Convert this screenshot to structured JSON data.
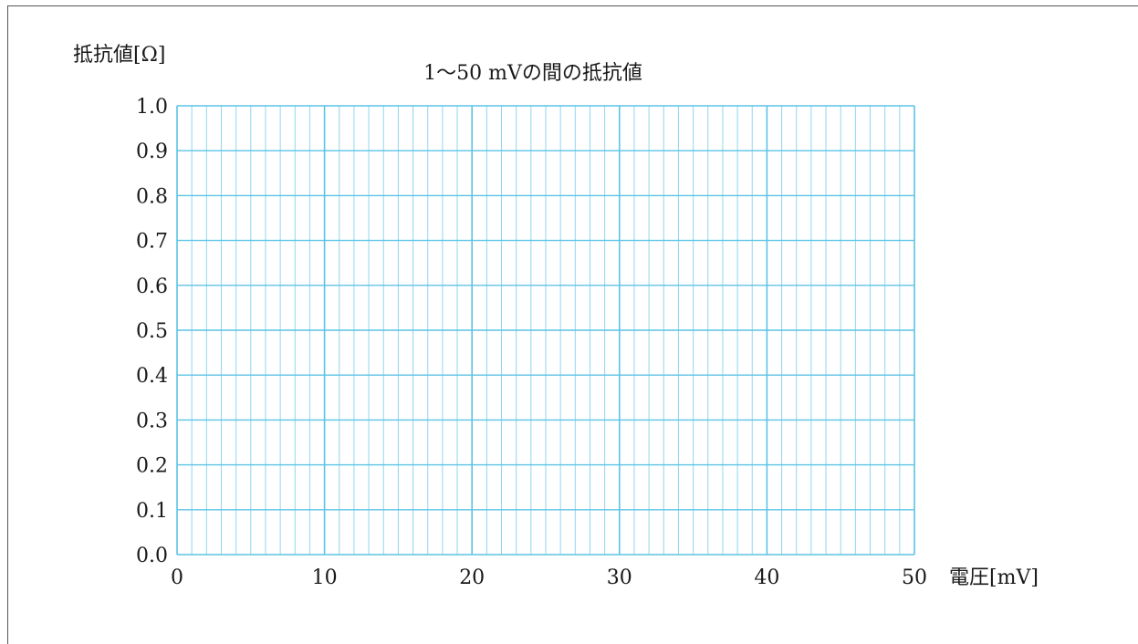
{
  "chart_data": {
    "type": "line",
    "title": "1〜50 mVの間の抵抗値",
    "xlabel": "電圧[mV]",
    "ylabel": "抵抗値[Ω]",
    "xlim": [
      0,
      50
    ],
    "ylim": [
      0.0,
      1.0
    ],
    "x_ticks": [
      0,
      10,
      20,
      30,
      40,
      50
    ],
    "x_tick_labels": [
      "0",
      "10",
      "20",
      "30",
      "40",
      "50"
    ],
    "y_ticks": [
      0.0,
      0.1,
      0.2,
      0.3,
      0.4,
      0.5,
      0.6,
      0.7,
      0.8,
      0.9,
      1.0
    ],
    "y_tick_labels": [
      "0.0",
      "0.1",
      "0.2",
      "0.3",
      "0.4",
      "0.5",
      "0.6",
      "0.7",
      "0.8",
      "0.9",
      "1.0"
    ],
    "x_minor_step": 1,
    "y_minor_step": 0.1,
    "grid": true,
    "series": []
  },
  "colors": {
    "grid_major": "#5cc3e6",
    "grid_minor": "#8fd6ef",
    "text": "#1a1a1a"
  }
}
